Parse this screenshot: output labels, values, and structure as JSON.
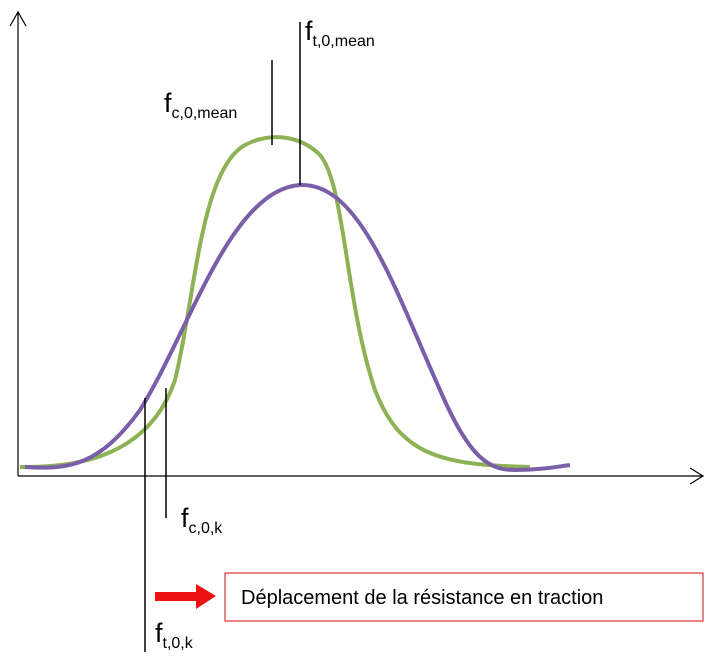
{
  "labels": [
    {
      "main": "f",
      "sub": "t,0,mean"
    },
    {
      "main": "f",
      "sub": "c,0,mean"
    },
    {
      "main": "f",
      "sub": "c,0,k"
    },
    {
      "main": "f",
      "sub": "t,0,k"
    }
  ],
  "caption": "Déplacement de la résistance en traction"
}
